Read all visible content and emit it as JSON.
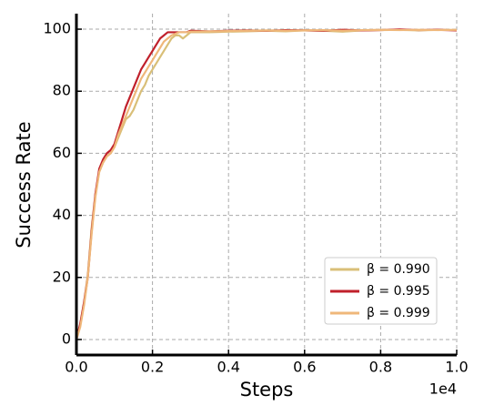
{
  "chart_data": {
    "type": "line",
    "xlabel": "Steps",
    "ylabel": "Success Rate",
    "x_offset_label": "1e4",
    "x": [
      0,
      100,
      200,
      300,
      400,
      500,
      600,
      700,
      800,
      900,
      1000,
      1100,
      1200,
      1300,
      1400,
      1500,
      1600,
      1700,
      1800,
      1900,
      2000,
      2100,
      2200,
      2300,
      2400,
      2500,
      2600,
      2700,
      2800,
      2900,
      3000,
      3500,
      4000,
      4500,
      5000,
      5500,
      6000,
      6500,
      7000,
      7500,
      8000,
      8500,
      9000,
      9500,
      10000
    ],
    "series": [
      {
        "name": "β = 0.990",
        "color": "#d9bf78",
        "values": [
          0,
          5,
          12,
          21,
          36,
          47,
          54,
          57,
          59,
          60,
          62,
          65,
          68,
          71,
          72,
          74,
          77,
          80,
          82,
          85,
          87,
          89,
          91,
          93,
          95,
          97,
          98,
          98,
          97,
          98,
          99,
          99,
          99.2,
          99.3,
          99.5,
          99.3,
          99.6,
          99.5,
          99.2,
          99.6,
          99.7,
          99.8,
          99.6,
          99.8,
          99.7
        ]
      },
      {
        "name": "β = 0.995",
        "color": "#c0202b",
        "values": [
          0,
          5,
          12,
          20,
          35,
          47,
          55,
          58,
          60,
          61,
          63,
          67,
          71,
          75,
          78,
          81,
          84,
          87,
          89,
          91,
          93,
          95,
          97,
          98,
          99,
          99,
          99,
          99,
          99,
          99,
          99.5,
          99.3,
          99.5,
          99.6,
          99.5,
          99.7,
          99.6,
          99.5,
          99.8,
          99.6,
          99.7,
          99.9,
          99.7,
          99.8,
          99.6
        ]
      },
      {
        "name": "β = 0.999",
        "color": "#efb77a",
        "values": [
          0,
          4,
          11,
          20,
          34,
          46,
          54,
          57,
          59,
          60,
          62,
          66,
          69,
          72,
          75,
          78,
          81,
          84,
          86,
          88,
          90,
          92,
          94,
          96,
          97,
          98,
          98.5,
          99,
          99,
          99,
          99.2,
          99.3,
          99.4,
          99.5,
          99.6,
          99.5,
          99.6,
          99.7,
          99.5,
          99.7,
          99.8,
          99.7,
          99.8,
          99.7,
          99.8
        ]
      }
    ],
    "xlim": [
      0,
      10000
    ],
    "xticks": [
      {
        "value": 0,
        "label": "0.0"
      },
      {
        "value": 2000,
        "label": "0.2"
      },
      {
        "value": 4000,
        "label": "0.4"
      },
      {
        "value": 6000,
        "label": "0.6"
      },
      {
        "value": 8000,
        "label": "0.8"
      },
      {
        "value": 10000,
        "label": "1.0"
      }
    ],
    "ylim": [
      -5,
      105
    ],
    "yticks": [
      0,
      20,
      40,
      60,
      80,
      100
    ],
    "grid": true,
    "legend": "lower right"
  }
}
